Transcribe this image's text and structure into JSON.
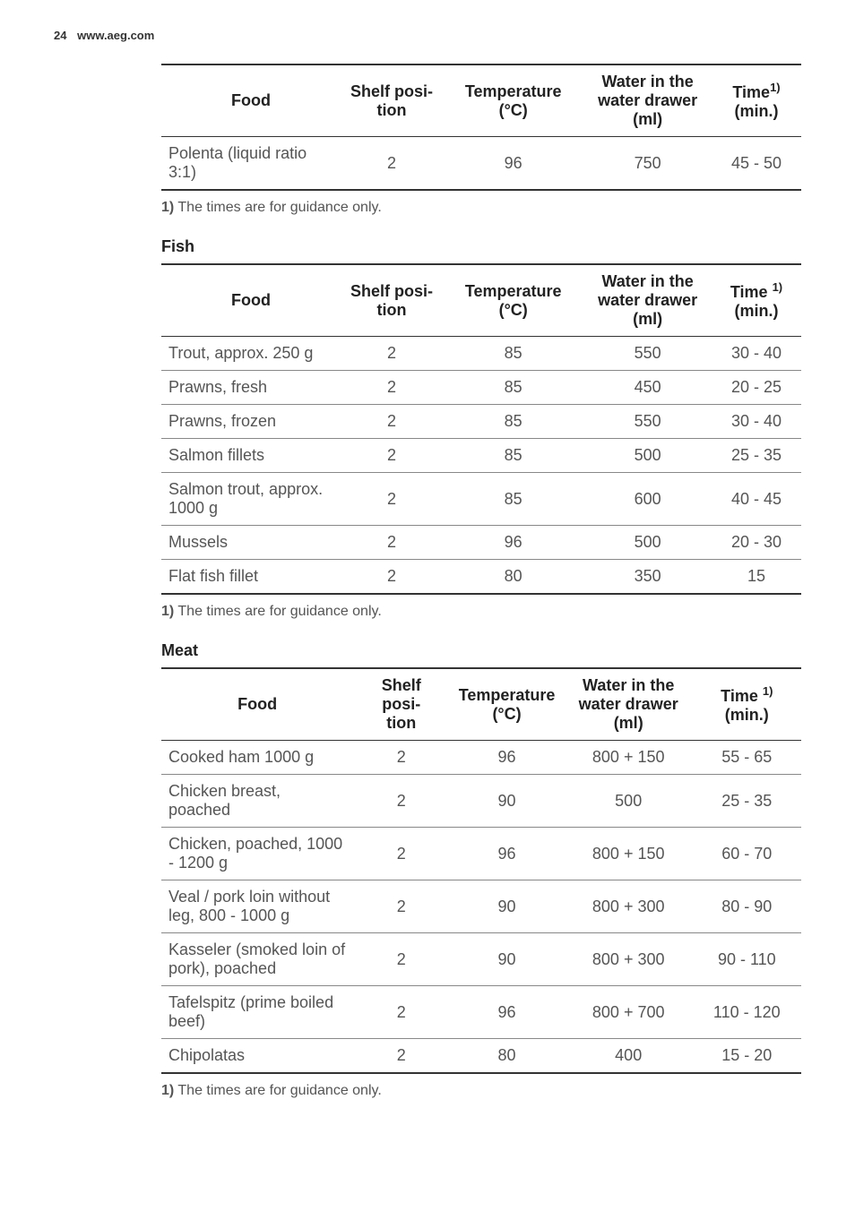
{
  "header": {
    "page_num": "24",
    "url": "www.aeg.com"
  },
  "columns": {
    "food": "Food",
    "shelf": "Shelf posi-\ntion",
    "temp": "Temperature (°C)",
    "temp_wrapped": "Temperature\n(°C)",
    "water": "Water in the\nwater drawer\n(ml)",
    "time_sup": "Time",
    "time_unit": "(min.)",
    "sup_mark": "1)"
  },
  "footnote": {
    "mark": "1)",
    "text": " The times are for guidance only."
  },
  "table1_rows": [
    {
      "food": "Polenta (liquid ratio 3:1)",
      "shelf": "2",
      "temp": "96",
      "water": "750",
      "time": "45 - 50"
    }
  ],
  "section_fish": "Fish",
  "fish_rows": [
    {
      "food": "Trout, approx. 250 g",
      "shelf": "2",
      "temp": "85",
      "water": "550",
      "time": "30 - 40"
    },
    {
      "food": "Prawns, fresh",
      "shelf": "2",
      "temp": "85",
      "water": "450",
      "time": "20 - 25"
    },
    {
      "food": "Prawns, frozen",
      "shelf": "2",
      "temp": "85",
      "water": "550",
      "time": "30 - 40"
    },
    {
      "food": "Salmon fillets",
      "shelf": "2",
      "temp": "85",
      "water": "500",
      "time": "25 - 35"
    },
    {
      "food": "Salmon trout, approx. 1000 g",
      "shelf": "2",
      "temp": "85",
      "water": "600",
      "time": "40 - 45"
    },
    {
      "food": "Mussels",
      "shelf": "2",
      "temp": "96",
      "water": "500",
      "time": "20 - 30"
    },
    {
      "food": "Flat fish fillet",
      "shelf": "2",
      "temp": "80",
      "water": "350",
      "time": "15"
    }
  ],
  "section_meat": "Meat",
  "meat_rows": [
    {
      "food": "Cooked ham 1000 g",
      "shelf": "2",
      "temp": "96",
      "water": "800 + 150",
      "time": "55 - 65"
    },
    {
      "food": "Chicken breast, poached",
      "shelf": "2",
      "temp": "90",
      "water": "500",
      "time": "25 - 35"
    },
    {
      "food": "Chicken, poached, 1000 - 1200 g",
      "shelf": "2",
      "temp": "96",
      "water": "800 + 150",
      "time": "60 - 70"
    },
    {
      "food": "Veal / pork loin without leg, 800 - 1000 g",
      "shelf": "2",
      "temp": "90",
      "water": "800 + 300",
      "time": "80 - 90"
    },
    {
      "food": "Kasseler (smoked loin of pork), poached",
      "shelf": "2",
      "temp": "90",
      "water": "800 + 300",
      "time": "90 - 110"
    },
    {
      "food": "Tafelspitz (prime boiled beef)",
      "shelf": "2",
      "temp": "96",
      "water": "800 + 700",
      "time": "110 - 120"
    },
    {
      "food": "Chipolatas",
      "shelf": "2",
      "temp": "80",
      "water": "400",
      "time": "15 - 20"
    }
  ]
}
